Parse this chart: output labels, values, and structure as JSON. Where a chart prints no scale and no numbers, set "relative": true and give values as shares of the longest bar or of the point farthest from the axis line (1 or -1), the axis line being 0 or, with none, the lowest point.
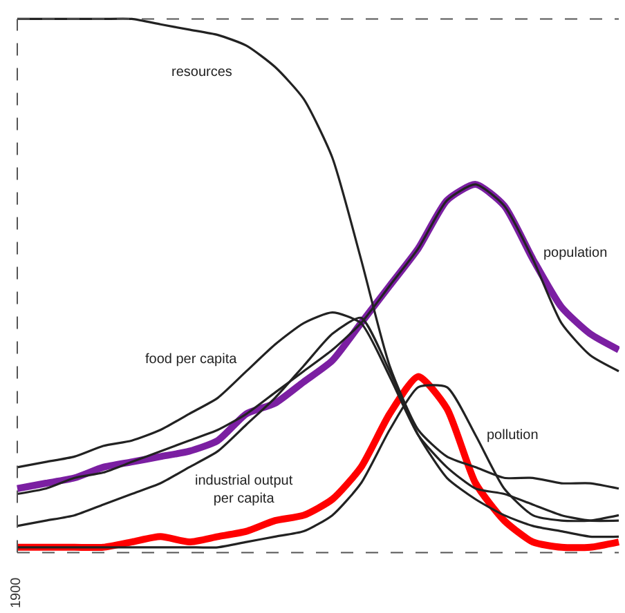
{
  "chart_data": {
    "type": "line",
    "relative": true,
    "marker": "none",
    "line_style": "solid",
    "annotations": [
      "1900"
    ],
    "categories": [
      null,
      null,
      null,
      null,
      null,
      null,
      null,
      null,
      null,
      null,
      null,
      null,
      null,
      null,
      null,
      null,
      null,
      null,
      null,
      null,
      null,
      null
    ],
    "series": [
      {
        "name": "resources",
        "color": "#222222",
        "values": [
          1.0,
          1.0,
          1.0,
          1.0,
          1.0,
          0.99,
          0.98,
          0.97,
          0.95,
          0.91,
          0.85,
          0.74,
          0.55,
          0.35,
          0.23,
          0.18,
          0.16,
          0.14,
          0.14,
          0.13,
          0.13,
          0.12
        ]
      },
      {
        "name": "food per capita",
        "color": "#222222",
        "values": [
          0.16,
          0.17,
          0.18,
          0.2,
          0.21,
          0.23,
          0.26,
          0.29,
          0.34,
          0.39,
          0.43,
          0.45,
          0.43,
          0.33,
          0.22,
          0.16,
          0.12,
          0.11,
          0.09,
          0.07,
          0.06,
          0.06
        ]
      },
      {
        "name": "industrial output\nper capita",
        "color": "#222222",
        "values": [
          0.05,
          0.06,
          0.07,
          0.09,
          0.11,
          0.13,
          0.16,
          0.19,
          0.24,
          0.29,
          0.35,
          0.41,
          0.44,
          0.34,
          0.22,
          0.14,
          0.1,
          0.07,
          0.05,
          0.04,
          0.03,
          0.03
        ]
      },
      {
        "name": "population",
        "color": "#222222",
        "values": [
          0.11,
          0.12,
          0.14,
          0.15,
          0.17,
          0.19,
          0.21,
          0.23,
          0.26,
          0.3,
          0.34,
          0.38,
          0.43,
          0.5,
          0.57,
          0.66,
          0.69,
          0.65,
          0.55,
          0.43,
          0.37,
          0.34
        ]
      },
      {
        "name": "pollution",
        "color": "#222222",
        "values": [
          0.01,
          0.01,
          0.01,
          0.01,
          0.01,
          0.01,
          0.01,
          0.01,
          0.02,
          0.03,
          0.04,
          0.07,
          0.13,
          0.23,
          0.31,
          0.31,
          0.22,
          0.12,
          0.07,
          0.06,
          0.06,
          0.07
        ]
      },
      {
        "color": "#7b1fa2",
        "values": [
          0.12,
          0.13,
          0.14,
          0.16,
          0.17,
          0.18,
          0.19,
          0.21,
          0.26,
          0.28,
          0.32,
          0.36,
          0.43,
          0.5,
          0.57,
          0.66,
          0.69,
          0.65,
          0.55,
          0.46,
          0.41,
          0.38
        ]
      },
      {
        "color": "#ff0000",
        "values": [
          0.01,
          0.01,
          0.01,
          0.01,
          0.02,
          0.03,
          0.02,
          0.03,
          0.04,
          0.06,
          0.07,
          0.1,
          0.16,
          0.26,
          0.33,
          0.27,
          0.13,
          0.06,
          0.02,
          0.01,
          0.01,
          0.02
        ]
      }
    ]
  }
}
